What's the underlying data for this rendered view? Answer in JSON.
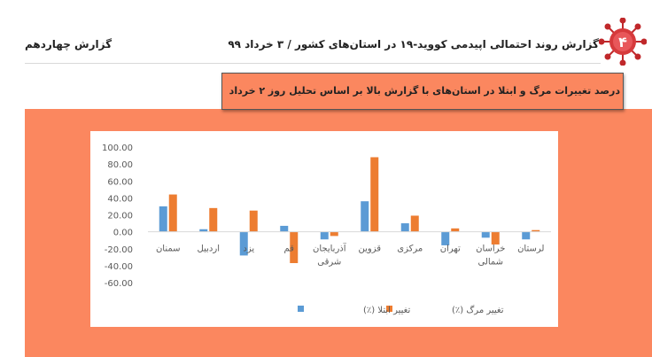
{
  "header": {
    "report_title": "گزارش روند احتمالی اپیدمی کووید-۱۹ در استان‌های کشور / ۳ خرداد ۹۹",
    "report_number": "گزارش چهاردهم",
    "badge_number": "۴"
  },
  "colors": {
    "background_panel": "#fb875f",
    "series_infection": "#5b9bd5",
    "series_death": "#ed7d31"
  },
  "chart_data": {
    "type": "bar",
    "title": "درصد تغییرات مرگ و ابتلا در استان‌های با گزارش بالا بر اساس تحلیل روز ۲ خرداد",
    "xlabel": "",
    "ylabel": "",
    "ylim": [
      -60,
      100
    ],
    "yticks": [
      "100.00",
      "80.00",
      "60.00",
      "40.00",
      "20.00",
      "0.00",
      "-20.00",
      "-40.00",
      "-60.00"
    ],
    "ytick_values": [
      100,
      80,
      60,
      40,
      20,
      0,
      -20,
      -40,
      -60
    ],
    "grid": false,
    "legend_position": "bottom",
    "categories": [
      "سمنان",
      "اردبیل",
      "یزد",
      "قم",
      "آذربایجان شرقی",
      "قزوین",
      "مرکزی",
      "تهران",
      "خراسان شمالی",
      "لرستان"
    ],
    "series": [
      {
        "name": "تغییر ابتلا (٪)",
        "values": [
          30,
          3,
          -28,
          7,
          -9,
          36,
          10,
          -16,
          -7,
          -9
        ]
      },
      {
        "name": "تغییر مرگ (٪)",
        "values": [
          44,
          28,
          25,
          -37,
          -5,
          88,
          19,
          4,
          -15,
          2
        ]
      }
    ]
  }
}
